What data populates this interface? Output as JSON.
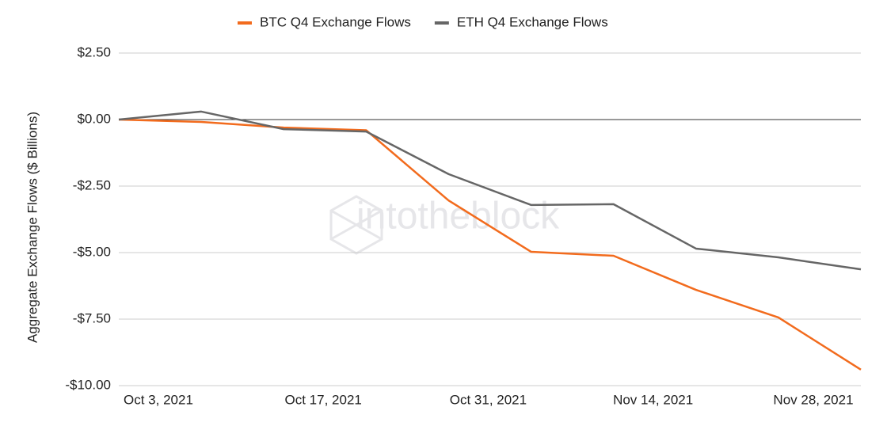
{
  "chart_data": {
    "type": "line",
    "categories": [
      "Oct 3, 2021",
      null,
      "Oct 17, 2021",
      null,
      "Oct 31, 2021",
      null,
      "Nov 14, 2021",
      null,
      "Nov 28, 2021",
      null
    ],
    "series": [
      {
        "name": "BTC Q4 Exchange Flows",
        "color": "#f26b1d",
        "values": [
          0,
          -0.09,
          -0.3,
          -0.4,
          -3.04,
          -4.97,
          -5.12,
          -6.4,
          -7.44,
          -9.4
        ]
      },
      {
        "name": "ETH Q4 Exchange Flows",
        "color": "#666666",
        "values": [
          0,
          0.3,
          -0.36,
          -0.45,
          -2.05,
          -3.21,
          -3.18,
          -4.85,
          -5.18,
          -5.63
        ]
      }
    ],
    "ylabel": "Aggregate Exchange Flows ($ Billions)",
    "watermark": "intotheblock",
    "ylim": [
      -10,
      2.5
    ],
    "yticks": [
      {
        "value": 2.5,
        "label": "$2.50"
      },
      {
        "value": 0,
        "label": "$0.00"
      },
      {
        "value": -2.5,
        "label": "-$2.50"
      },
      {
        "value": -5,
        "label": "-$5.00"
      },
      {
        "value": -7.5,
        "label": "-$7.50"
      },
      {
        "value": -10,
        "label": "-$10.00"
      }
    ],
    "grid": true,
    "legend": "top"
  }
}
